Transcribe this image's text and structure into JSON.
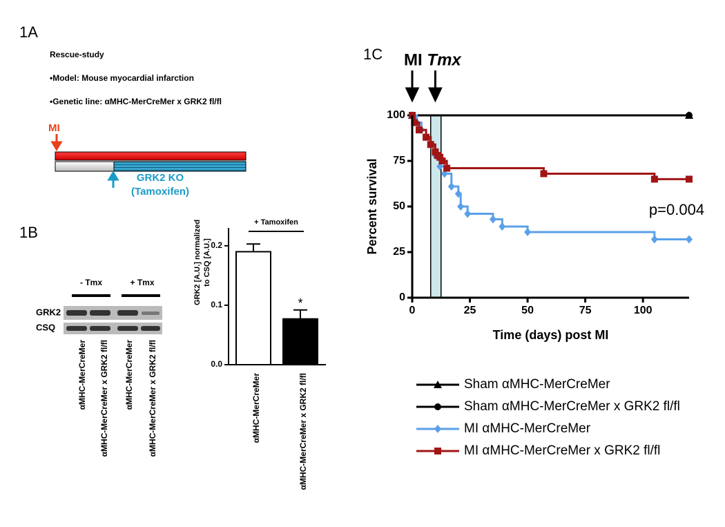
{
  "panel_1a": {
    "label": "1A",
    "lines": [
      "Rescue-study",
      "•Model: Mouse myocardial infarction",
      "•Genetic line: αMHC-MerCreMer x GRK2 fl/fl"
    ],
    "mi_label": "MI",
    "ko_label": [
      "GRK2 KO",
      "(Tamoxifen)"
    ]
  },
  "panel_1b_blot": {
    "label": "1B",
    "groups": [
      "- Tmx",
      "+ Tmx"
    ],
    "rows": [
      "GRK2",
      "CSQ"
    ],
    "lanes": [
      "αMHC-MerCreMer",
      "αMHC-MerCreMer x GRK2 fl/fl",
      "αMHC-MerCreMer",
      "αMHC-MerCreMer x GRK2 fl/fl"
    ]
  },
  "chart_data": [
    {
      "type": "bar",
      "y_label": [
        "GRK2 [A.U.] normalized",
        "to CSQ [A.U.]"
      ],
      "categories": [
        "αMHC-MerCreMer",
        "αMHC-MerCreMer x GRK2 fl/fl"
      ],
      "values": [
        0.19,
        0.077
      ],
      "errors": [
        0.013,
        0.015
      ],
      "colors": [
        "#ffffff",
        "#000000"
      ],
      "ylim": [
        0,
        0.23
      ],
      "yticks": [
        {
          "value": 0,
          "label": "0.0"
        },
        0.1,
        0.2
      ],
      "bracket_label": "+ Tamoxifen",
      "significance": "*"
    },
    {
      "type": "line",
      "panel_label": "1C",
      "y_label": "Percent survival",
      "x_label": "Time (days) post MI",
      "xlim": [
        0,
        120
      ],
      "xticks": [
        0,
        25,
        50,
        75,
        100
      ],
      "ylim": [
        0,
        100
      ],
      "yticks": [
        0,
        25,
        50,
        75,
        100
      ],
      "tmx_window": [
        8,
        12.5
      ],
      "annotations": [
        {
          "text": "MI",
          "x": 0
        },
        {
          "text": "Tmx",
          "x": 10
        }
      ],
      "p_value": "p=0.004",
      "series": [
        {
          "name": "Sham αMHC-MerCreMer",
          "color": "#000000",
          "marker": "triangle",
          "x": [
            0,
            120
          ],
          "values": [
            100,
            100
          ]
        },
        {
          "name": "Sham αMHC-MerCreMer x GRK2 fl/fl",
          "color": "#000000",
          "marker": "circle",
          "x": [
            0,
            120
          ],
          "values": [
            100,
            100
          ]
        },
        {
          "name": "MI αMHC-MerCreMer",
          "color": "#5aa0e8",
          "marker": "diamond",
          "x": [
            0,
            2,
            4,
            6,
            8,
            10,
            12,
            14,
            17,
            20,
            21,
            24,
            35,
            39,
            50,
            105,
            120
          ],
          "values": [
            100,
            96,
            92,
            88,
            84,
            78,
            72,
            68,
            61,
            57,
            50,
            46,
            43,
            39,
            36,
            32,
            32
          ]
        },
        {
          "name": "MI αMHC-MerCreMer x GRK2 fl/fl",
          "color": "#a01515",
          "marker": "square",
          "x": [
            0,
            1,
            3,
            6,
            8,
            10,
            11,
            12,
            13,
            15,
            57,
            105,
            120
          ],
          "values": [
            100,
            96,
            92,
            88,
            84,
            80,
            78,
            77,
            75,
            71,
            68,
            65,
            65
          ]
        }
      ]
    }
  ]
}
